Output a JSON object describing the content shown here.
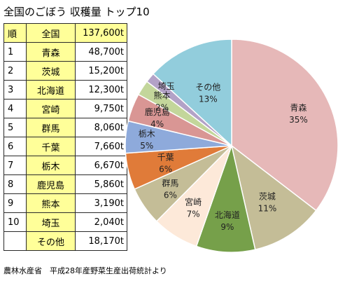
{
  "title": "全国のごぼう 収穫量 トップ10",
  "table": {
    "header": {
      "rank": "順",
      "region": "全国",
      "amount": "137,600t"
    },
    "rows": [
      {
        "rank": "1",
        "region": "青森",
        "amount": "48,700t"
      },
      {
        "rank": "2",
        "region": "茨城",
        "amount": "15,200t"
      },
      {
        "rank": "3",
        "region": "北海道",
        "amount": "12,300t"
      },
      {
        "rank": "4",
        "region": "宮崎",
        "amount": "9,750t"
      },
      {
        "rank": "5",
        "region": "群馬",
        "amount": "8,060t"
      },
      {
        "rank": "6",
        "region": "千葉",
        "amount": "7,660t"
      },
      {
        "rank": "7",
        "region": "栃木",
        "amount": "6,670t"
      },
      {
        "rank": "8",
        "region": "鹿児島",
        "amount": "5,860t"
      },
      {
        "rank": "9",
        "region": "熊本",
        "amount": "3,190t"
      },
      {
        "rank": "10",
        "region": "埼玉",
        "amount": "2,040t"
      }
    ],
    "footer": {
      "rank": "",
      "region": "その他",
      "amount": "18,170t"
    }
  },
  "source": "農林水産省　平成28年産野菜生産出荷統計より",
  "chart_data": {
    "type": "pie",
    "start": "top (12 o'clock)",
    "direction": "clockwise",
    "slices": [
      {
        "label": "青森",
        "value": 48700,
        "pct": "35%",
        "color": "#e6b8b8"
      },
      {
        "label": "茨城",
        "value": 15200,
        "pct": "11%",
        "color": "#c4bd97"
      },
      {
        "label": "北海道",
        "value": 12300,
        "pct": "9%",
        "color": "#76a04a"
      },
      {
        "label": "宮崎",
        "value": 9750,
        "pct": "7%",
        "color": "#fde9d9"
      },
      {
        "label": "群馬",
        "value": 8060,
        "pct": "6%",
        "color": "#c4bd97"
      },
      {
        "label": "千葉",
        "value": 7660,
        "pct": "6%",
        "color": "#e07b39"
      },
      {
        "label": "栃木",
        "value": 6670,
        "pct": "5%",
        "color": "#8eaadb"
      },
      {
        "label": "鹿児島",
        "value": 5860,
        "pct": "4%",
        "color": "#d99694"
      },
      {
        "label": "熊本",
        "value": 3190,
        "pct": "2%",
        "color": "#c3d69b"
      },
      {
        "label": "埼玉",
        "value": 2040,
        "pct": "",
        "color": "#b3a2c7"
      },
      {
        "label": "その他",
        "value": 18170,
        "pct": "13%",
        "color": "#92cddc"
      }
    ]
  }
}
